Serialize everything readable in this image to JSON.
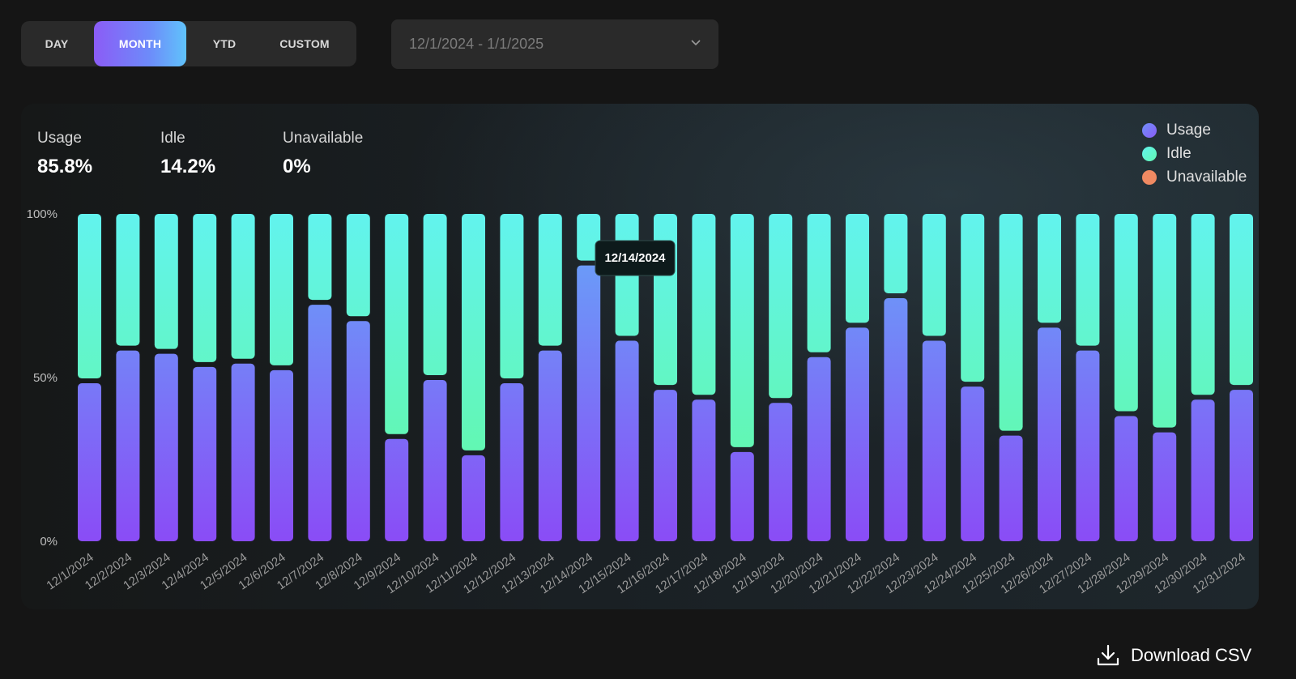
{
  "range_tabs": {
    "items": [
      {
        "label": "DAY",
        "active": false
      },
      {
        "label": "MONTH",
        "active": true
      },
      {
        "label": "YTD",
        "active": false
      },
      {
        "label": "CUSTOM",
        "active": false
      }
    ]
  },
  "date_range": {
    "value": "12/1/2024 - 1/1/2025",
    "icon": "chevron-down-icon"
  },
  "summary": {
    "usage": {
      "label": "Usage",
      "value": "85.8%"
    },
    "idle": {
      "label": "Idle",
      "value": "14.2%"
    },
    "unavailable": {
      "label": "Unavailable",
      "value": "0%"
    }
  },
  "legend": [
    {
      "label": "Usage",
      "color": "#7c7cf8"
    },
    {
      "label": "Idle",
      "color": "#6df4c8"
    },
    {
      "label": "Unavailable",
      "color": "#f08a62"
    }
  ],
  "tooltip": {
    "label": "12/14/2024"
  },
  "download": {
    "label": "Download CSV",
    "icon": "download-icon"
  },
  "colors": {
    "usage_top": "#6a9cf8",
    "usage_bottom": "#8a4cf6",
    "idle_top": "#62f3ee",
    "idle_bottom": "#62f7b2",
    "tooltip_bg": "#0d1a1b"
  },
  "chart_data": {
    "type": "bar",
    "stacked": true,
    "ylim": [
      0,
      100
    ],
    "yticks": [
      "0%",
      "50%",
      "100%"
    ],
    "grid": false,
    "legend_position": "top-right",
    "categories": [
      "12/1/2024",
      "12/2/2024",
      "12/3/2024",
      "12/4/2024",
      "12/5/2024",
      "12/6/2024",
      "12/7/2024",
      "12/8/2024",
      "12/9/2024",
      "12/10/2024",
      "12/11/2024",
      "12/12/2024",
      "12/13/2024",
      "12/14/2024",
      "12/15/2024",
      "12/16/2024",
      "12/17/2024",
      "12/18/2024",
      "12/19/2024",
      "12/20/2024",
      "12/21/2024",
      "12/22/2024",
      "12/23/2024",
      "12/24/2024",
      "12/25/2024",
      "12/26/2024",
      "12/27/2024",
      "12/28/2024",
      "12/29/2024",
      "12/30/2024",
      "12/31/2024"
    ],
    "series": [
      {
        "name": "Usage",
        "values": [
          49,
          59,
          58,
          54,
          55,
          53,
          73,
          68,
          32,
          50,
          27,
          49,
          59,
          85,
          62,
          47,
          44,
          28,
          43,
          57,
          66,
          75,
          62,
          48,
          33,
          66,
          59,
          39,
          34,
          44,
          47
        ]
      },
      {
        "name": "Idle",
        "values": [
          51,
          41,
          42,
          46,
          45,
          47,
          27,
          32,
          68,
          50,
          73,
          51,
          41,
          15,
          38,
          53,
          56,
          72,
          57,
          43,
          34,
          25,
          38,
          52,
          67,
          34,
          41,
          61,
          66,
          56,
          53
        ]
      },
      {
        "name": "Unavailable",
        "values": [
          0,
          0,
          0,
          0,
          0,
          0,
          0,
          0,
          0,
          0,
          0,
          0,
          0,
          0,
          0,
          0,
          0,
          0,
          0,
          0,
          0,
          0,
          0,
          0,
          0,
          0,
          0,
          0,
          0,
          0,
          0
        ]
      }
    ]
  }
}
